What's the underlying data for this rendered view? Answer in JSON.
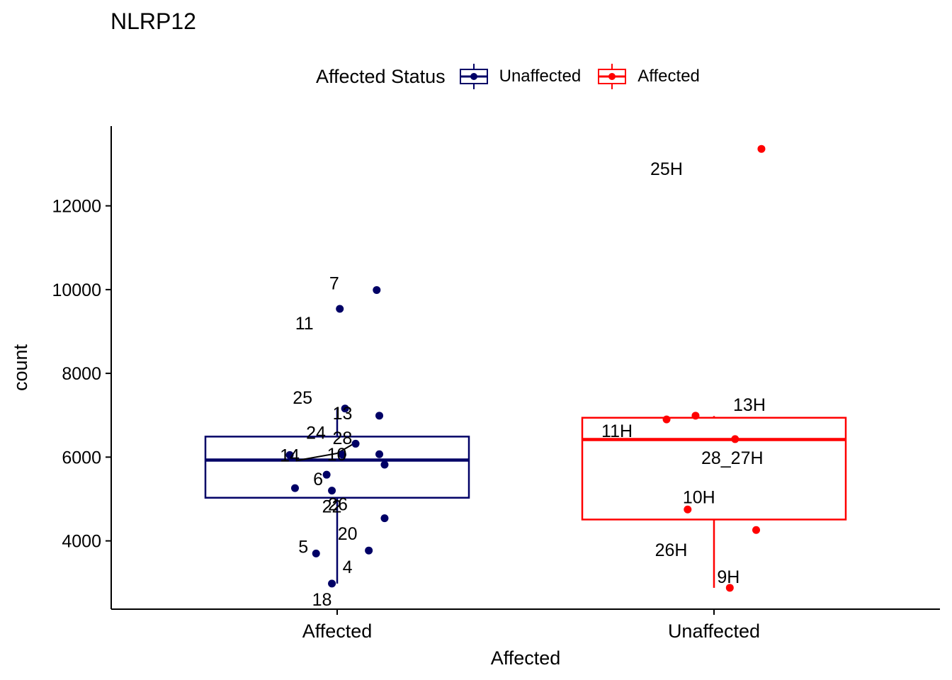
{
  "chart_data": {
    "type": "box",
    "title": "NLRP12",
    "xlabel": "Affected",
    "ylabel": "count",
    "ylim": [
      2600,
      13900
    ],
    "yticks": [
      4000,
      6000,
      8000,
      10000,
      12000
    ],
    "ytick_labels": [
      "4000",
      "6000",
      "8000",
      "10000",
      "12000"
    ],
    "categories": [
      "Affected",
      "Unaffected"
    ],
    "legend": {
      "title": "Affected Status",
      "position": "top",
      "entries": [
        {
          "label": "Unaffected",
          "color": "#000066"
        },
        {
          "label": "Affected",
          "color": "#ff0000"
        }
      ]
    },
    "series": [
      {
        "name": "Unaffected",
        "category": "Affected",
        "color": "#000066",
        "box": {
          "whisker_low": 2980,
          "q1": 5030,
          "median": 5930,
          "q3": 6490,
          "whisker_high": 7150
        },
        "points": [
          {
            "label": "7",
            "x": 0.15,
            "y": 9990
          },
          {
            "label": "11",
            "x": 0.01,
            "y": 9540
          },
          {
            "label": "25",
            "x": 0.03,
            "y": 7160
          },
          {
            "label": "13",
            "x": 0.16,
            "y": 6990
          },
          {
            "label": "24",
            "x": 0.07,
            "y": 6320
          },
          {
            "label": "28",
            "x": 0.02,
            "y": 6060
          },
          {
            "label": "14",
            "x": -0.18,
            "y": 6050
          },
          {
            "label": "10",
            "x": 0.16,
            "y": 6070
          },
          {
            "label": "",
            "x": 0.18,
            "y": 5820
          },
          {
            "label": "6",
            "x": -0.04,
            "y": 5580
          },
          {
            "label": "",
            "x": -0.16,
            "y": 5260
          },
          {
            "label": "22",
            "x": -0.02,
            "y": 5200
          },
          {
            "label": "26",
            "x": 0.18,
            "y": 4540
          },
          {
            "label": "20",
            "x": 0.12,
            "y": 3770
          },
          {
            "label": "5",
            "x": -0.08,
            "y": 3700
          },
          {
            "label": "4",
            "x": -0.02,
            "y": 2980
          },
          {
            "label": "18",
            "x": -0.02,
            "y": 2980
          }
        ]
      },
      {
        "name": "Affected",
        "category": "Unaffected",
        "color": "#ff0000",
        "box": {
          "whisker_low": 2880,
          "q1": 4510,
          "median": 6420,
          "q3": 6940,
          "whisker_high": 6980
        },
        "points": [
          {
            "label": "25H",
            "x": 0.18,
            "y": 13360
          },
          {
            "label": "13H",
            "x": -0.07,
            "y": 6990
          },
          {
            "label": "11H",
            "x": -0.18,
            "y": 6900
          },
          {
            "label": "28_27H",
            "x": 0.08,
            "y": 6430
          },
          {
            "label": "10H",
            "x": -0.1,
            "y": 4750
          },
          {
            "label": "26H",
            "x": 0.16,
            "y": 4260
          },
          {
            "label": "9H",
            "x": 0.06,
            "y": 2880
          }
        ]
      }
    ]
  }
}
